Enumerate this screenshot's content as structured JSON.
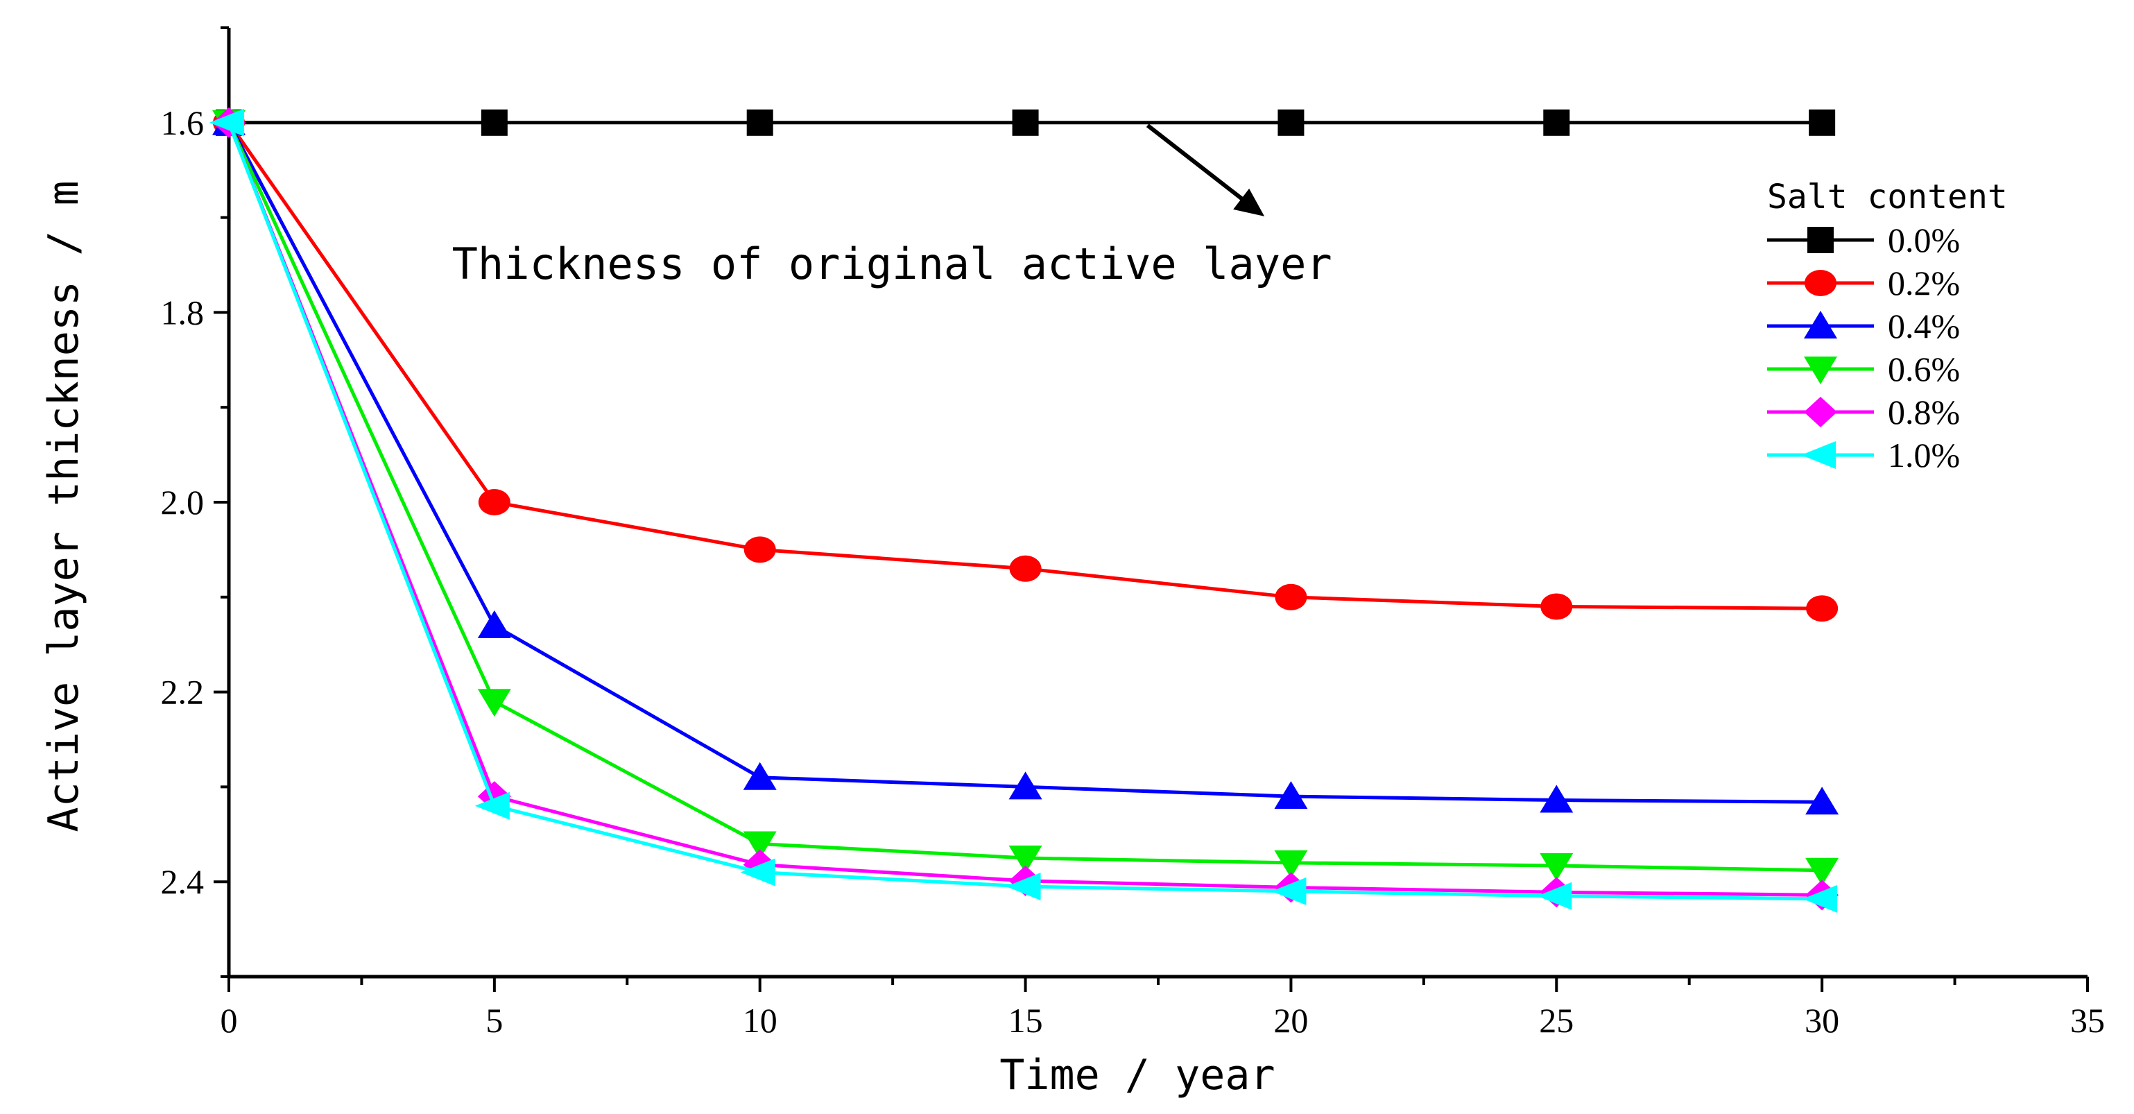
{
  "chart_data": {
    "type": "line",
    "title": "",
    "xlabel": "Time / year",
    "ylabel": "Active layer thickness / m",
    "xlim": [
      0,
      35
    ],
    "ylim": [
      1.5,
      2.5
    ],
    "y_inverted": true,
    "grid": false,
    "x_ticks": [
      "0",
      "5",
      "10",
      "15",
      "20",
      "25",
      "30",
      "35"
    ],
    "y_ticks": [
      "1.6",
      "1.8",
      "2.0",
      "2.2",
      "2.4"
    ],
    "annotation": "Thickness of original active layer",
    "legend_title": "Salt content",
    "legend_position": "right",
    "x": [
      0,
      5,
      10,
      15,
      20,
      25,
      30
    ],
    "series": [
      {
        "name": "0.0%",
        "color": "#000000",
        "marker": "square",
        "values": [
          1.6,
          1.6,
          1.6,
          1.6,
          1.6,
          1.6,
          1.6
        ]
      },
      {
        "name": "0.2%",
        "color": "#ff0000",
        "marker": "circle",
        "values": [
          1.6,
          2.0,
          2.05,
          2.07,
          2.1,
          2.11,
          2.112
        ]
      },
      {
        "name": "0.4%",
        "color": "#0000ff",
        "marker": "triangle-up",
        "values": [
          1.6,
          2.13,
          2.29,
          2.3,
          2.31,
          2.314,
          2.316
        ]
      },
      {
        "name": "0.6%",
        "color": "#00ee00",
        "marker": "triangle-down",
        "values": [
          1.6,
          2.21,
          2.36,
          2.375,
          2.38,
          2.383,
          2.388
        ]
      },
      {
        "name": "0.8%",
        "color": "#ff00ff",
        "marker": "diamond",
        "values": [
          1.6,
          2.31,
          2.382,
          2.399,
          2.406,
          2.411,
          2.414
        ]
      },
      {
        "name": "1.0%",
        "color": "#00ffff",
        "marker": "triangle-left",
        "values": [
          1.6,
          2.32,
          2.39,
          2.405,
          2.41,
          2.415,
          2.418
        ]
      }
    ]
  }
}
